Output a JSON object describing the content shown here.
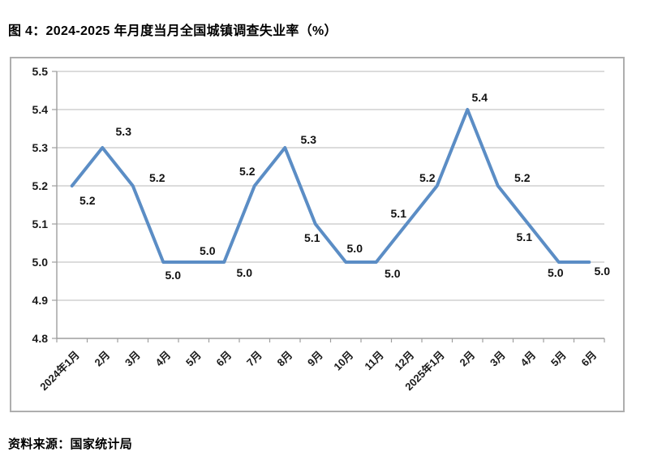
{
  "figure": {
    "caption": "图 4：2024-2025 年月度当月全国城镇调查失业率（%）",
    "source": "资料来源：国家统计局"
  },
  "chart_data": {
    "type": "line",
    "title": "图 4：2024-2025 年月度当月全国城镇调查失业率（%）",
    "categories": [
      "2024年1月",
      "2月",
      "3月",
      "4月",
      "5月",
      "6月",
      "7月",
      "8月",
      "9月",
      "10月",
      "11月",
      "12月",
      "2025年1月",
      "2月",
      "3月",
      "4月",
      "5月",
      "6月"
    ],
    "values": [
      5.2,
      5.3,
      5.2,
      5.0,
      5.0,
      5.0,
      5.2,
      5.3,
      5.1,
      5.0,
      5.0,
      5.1,
      5.2,
      5.4,
      5.2,
      5.1,
      5.0,
      5.0
    ],
    "xlabel": "",
    "ylabel": "",
    "ylim": [
      4.8,
      5.5
    ],
    "yticks": [
      4.8,
      4.9,
      5.0,
      5.1,
      5.2,
      5.3,
      5.4,
      5.5
    ],
    "grid": true,
    "legend_position": "none",
    "data_labels": true,
    "colors": {
      "line": "#5b8dc5",
      "gridline": "#c6c6c6",
      "axis": "#9e9e9e",
      "border": "#aeaeae",
      "text": "#1a1a1a"
    }
  }
}
